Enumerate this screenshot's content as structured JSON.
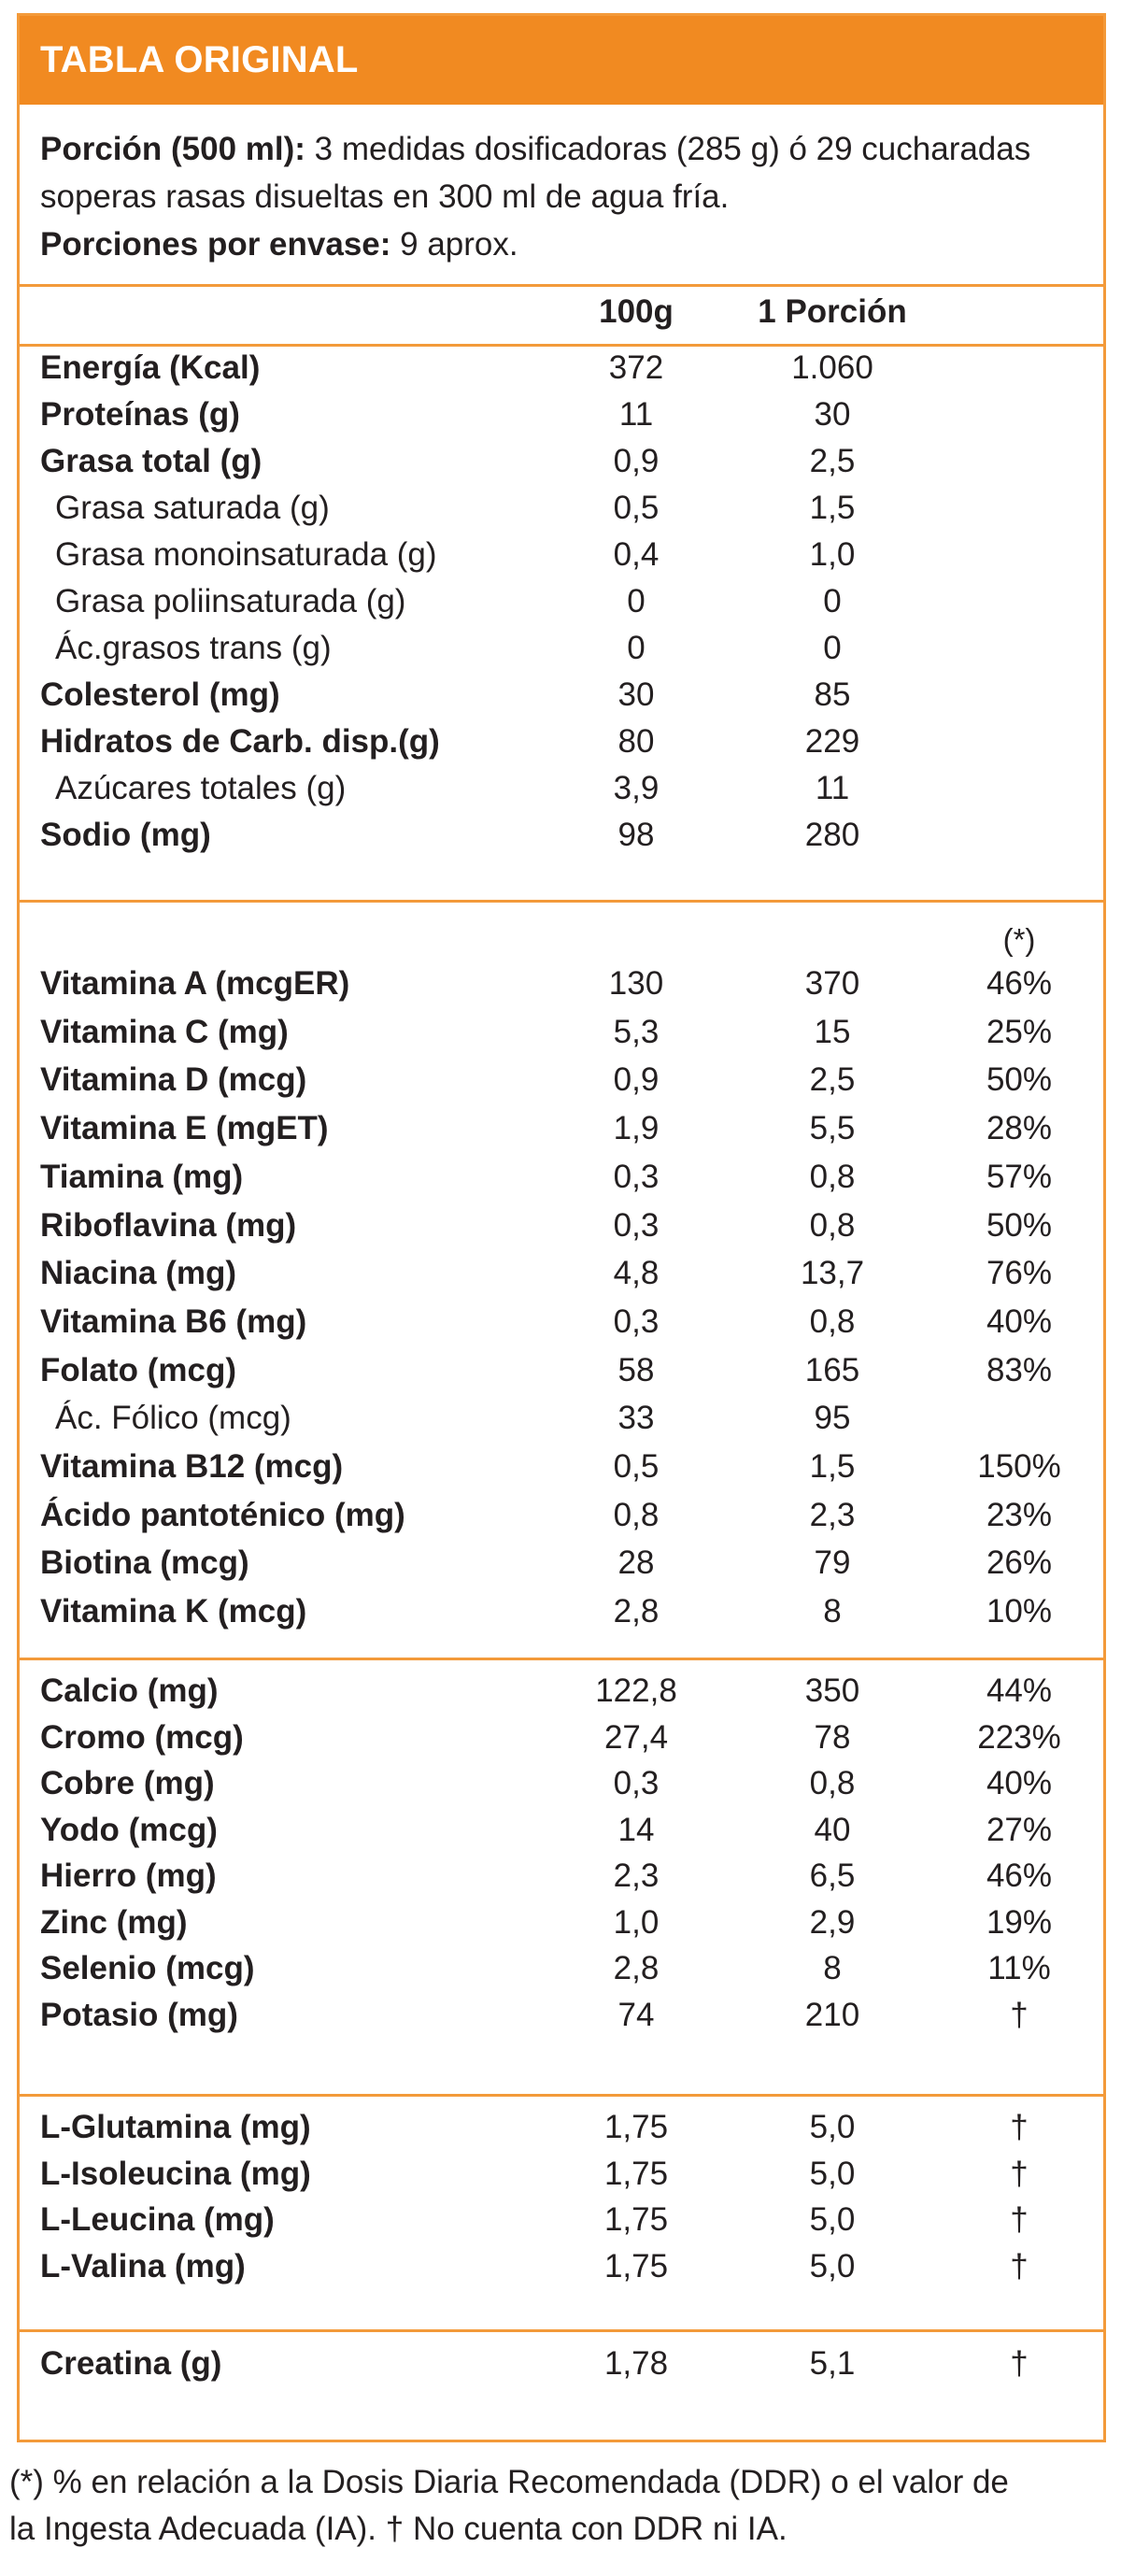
{
  "title": "TABLA ORIGINAL",
  "intro": {
    "line1_bold": "Porción (500 ml):",
    "line1_text": " 3 medidas dosificadoras (285 g) ó 29 cucharadas",
    "line2_text": "soperas rasas disueltas en 300 ml de agua fría.",
    "line3_bold": "Porciones por envase:",
    "line3_text": " 9 aprox."
  },
  "headers": {
    "col1": "100g",
    "col2": "1 Porción",
    "col3": "(*)"
  },
  "sections": [
    {
      "rows": [
        {
          "name": "Energía (Kcal)",
          "v1": "372",
          "v2": "1.060",
          "v3": "",
          "bold": true,
          "indent": false
        },
        {
          "name": "Proteínas (g)",
          "v1": "11",
          "v2": "30",
          "v3": "",
          "bold": true,
          "indent": false
        },
        {
          "name": "Grasa total (g)",
          "v1": "0,9",
          "v2": "2,5",
          "v3": "",
          "bold": true,
          "indent": false
        },
        {
          "name": "Grasa saturada (g)",
          "v1": "0,5",
          "v2": "1,5",
          "v3": "",
          "bold": false,
          "indent": true
        },
        {
          "name": "Grasa monoinsaturada (g)",
          "v1": "0,4",
          "v2": "1,0",
          "v3": "",
          "bold": false,
          "indent": true
        },
        {
          "name": "Grasa poliinsaturada (g)",
          "v1": "0",
          "v2": "0",
          "v3": "",
          "bold": false,
          "indent": true
        },
        {
          "name": "Ác.grasos trans (g)",
          "v1": "0",
          "v2": "0",
          "v3": "",
          "bold": false,
          "indent": true
        },
        {
          "name": "Colesterol (mg)",
          "v1": "30",
          "v2": "85",
          "v3": "",
          "bold": true,
          "indent": false
        },
        {
          "name": "Hidratos de Carb. disp.(g)",
          "v1": "80",
          "v2": "229",
          "v3": "",
          "bold": true,
          "indent": false
        },
        {
          "name": "Azúcares totales (g)",
          "v1": "3,9",
          "v2": "11",
          "v3": "",
          "bold": false,
          "indent": true
        },
        {
          "name": "Sodio (mg)",
          "v1": "98",
          "v2": "280",
          "v3": "",
          "bold": true,
          "indent": false
        }
      ]
    },
    {
      "rows": [
        {
          "name": "Vitamina A (mcgER)",
          "v1": "130",
          "v2": "370",
          "v3": "46%",
          "bold": true,
          "indent": false
        },
        {
          "name": "Vitamina C (mg)",
          "v1": "5,3",
          "v2": "15",
          "v3": "25%",
          "bold": true,
          "indent": false
        },
        {
          "name": "Vitamina D (mcg)",
          "v1": "0,9",
          "v2": "2,5",
          "v3": "50%",
          "bold": true,
          "indent": false
        },
        {
          "name": "Vitamina E (mgET)",
          "v1": "1,9",
          "v2": "5,5",
          "v3": "28%",
          "bold": true,
          "indent": false
        },
        {
          "name": "Tiamina (mg)",
          "v1": "0,3",
          "v2": "0,8",
          "v3": "57%",
          "bold": true,
          "indent": false
        },
        {
          "name": "Riboflavina (mg)",
          "v1": "0,3",
          "v2": "0,8",
          "v3": "50%",
          "bold": true,
          "indent": false
        },
        {
          "name": "Niacina (mg)",
          "v1": "4,8",
          "v2": "13,7",
          "v3": "76%",
          "bold": true,
          "indent": false
        },
        {
          "name": "Vitamina B6 (mg)",
          "v1": "0,3",
          "v2": "0,8",
          "v3": "40%",
          "bold": true,
          "indent": false
        },
        {
          "name": "Folato (mcg)",
          "v1": "58",
          "v2": "165",
          "v3": "83%",
          "bold": true,
          "indent": false
        },
        {
          "name": "Ác. Fólico (mcg)",
          "v1": "33",
          "v2": "95",
          "v3": "",
          "bold": false,
          "indent": true
        },
        {
          "name": "Vitamina B12 (mcg)",
          "v1": "0,5",
          "v2": "1,5",
          "v3": "150%",
          "bold": true,
          "indent": false
        },
        {
          "name": "Ácido pantoténico (mg)",
          "v1": "0,8",
          "v2": "2,3",
          "v3": "23%",
          "bold": true,
          "indent": false
        },
        {
          "name": "Biotina (mcg)",
          "v1": "28",
          "v2": "79",
          "v3": "26%",
          "bold": true,
          "indent": false
        },
        {
          "name": "Vitamina K (mcg)",
          "v1": "2,8",
          "v2": "8",
          "v3": "10%",
          "bold": true,
          "indent": false
        }
      ]
    },
    {
      "rows": [
        {
          "name": "Calcio (mg)",
          "v1": "122,8",
          "v2": "350",
          "v3": "44%",
          "bold": true,
          "indent": false
        },
        {
          "name": "Cromo (mcg)",
          "v1": "27,4",
          "v2": "78",
          "v3": "223%",
          "bold": true,
          "indent": false
        },
        {
          "name": "Cobre (mg)",
          "v1": "0,3",
          "v2": "0,8",
          "v3": "40%",
          "bold": true,
          "indent": false
        },
        {
          "name": "Yodo (mcg)",
          "v1": "14",
          "v2": "40",
          "v3": "27%",
          "bold": true,
          "indent": false
        },
        {
          "name": "Hierro (mg)",
          "v1": "2,3",
          "v2": "6,5",
          "v3": "46%",
          "bold": true,
          "indent": false
        },
        {
          "name": "Zinc (mg)",
          "v1": "1,0",
          "v2": "2,9",
          "v3": "19%",
          "bold": true,
          "indent": false
        },
        {
          "name": "Selenio (mcg)",
          "v1": "2,8",
          "v2": "8",
          "v3": "11%",
          "bold": true,
          "indent": false
        },
        {
          "name": "Potasio (mg)",
          "v1": "74",
          "v2": "210",
          "v3": "†",
          "bold": true,
          "indent": false
        }
      ]
    },
    {
      "rows": [
        {
          "name": "L-Glutamina (mg)",
          "v1": "1,75",
          "v2": "5,0",
          "v3": "†",
          "bold": true,
          "indent": false
        },
        {
          "name": "L-Isoleucina (mg)",
          "v1": "1,75",
          "v2": "5,0",
          "v3": "†",
          "bold": true,
          "indent": false
        },
        {
          "name": "L-Leucina (mg)",
          "v1": "1,75",
          "v2": "5,0",
          "v3": "†",
          "bold": true,
          "indent": false
        },
        {
          "name": "L-Valina (mg)",
          "v1": "1,75",
          "v2": "5,0",
          "v3": "†",
          "bold": true,
          "indent": false
        }
      ]
    },
    {
      "rows": [
        {
          "name": "Creatina (g)",
          "v1": "1,78",
          "v2": "5,1",
          "v3": "†",
          "bold": true,
          "indent": false
        }
      ]
    }
  ],
  "footnote": {
    "line1": "(*) % en relación a la Dosis Diaria Recomendada (DDR) o el valor de",
    "line2": "la Ingesta Adecuada (IA). † No cuenta con DDR ni IA."
  }
}
